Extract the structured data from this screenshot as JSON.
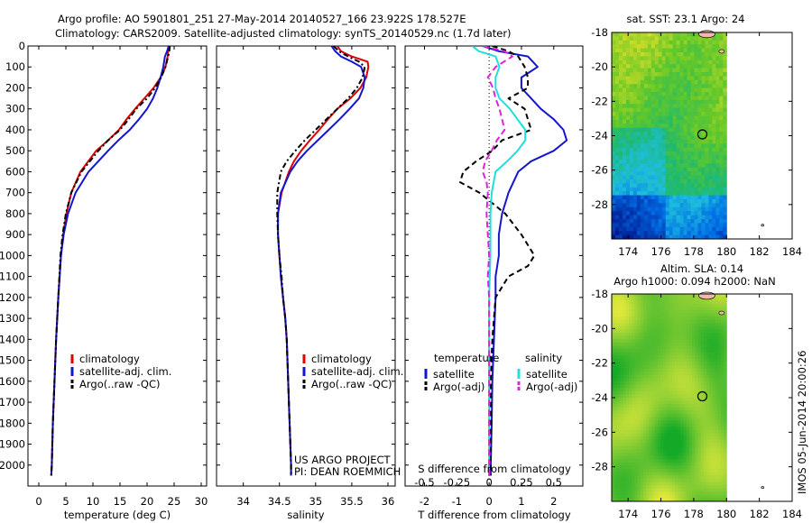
{
  "figure": {
    "title_line1": "Argo profile: AO 5901801_251 27-May-2014 20140527_166 23.922S 178.527E",
    "title_line2": "Climatology: CARS2009. Satellite-adjusted climatology: synTS_20140529.nc (1.7d later)",
    "credit_line1": "US ARGO PROJECT",
    "credit_line2": "PI: DEAN ROEMMICH",
    "watermark": "IMOS 05-Jun-2014 20:00:26"
  },
  "colors": {
    "climatology": "#e00000",
    "satellite": "#1515d0",
    "argo": "#000000",
    "sat_salinity": "#20dede",
    "argo_salinity": "#e020e0"
  },
  "chart_data": [
    {
      "type": "line",
      "xlabel": "temperature (deg C)",
      "xlim": [
        -2,
        31
      ],
      "ylim": [
        0,
        2100
      ],
      "xticks": [
        0,
        5,
        10,
        15,
        20,
        25,
        30
      ],
      "yticks": [
        0,
        100,
        200,
        300,
        400,
        500,
        600,
        700,
        800,
        900,
        1000,
        1100,
        1200,
        1300,
        1400,
        1500,
        1600,
        1700,
        1800,
        1900,
        2000
      ],
      "legend": [
        "climatology",
        "satellite-adj. clim.",
        "Argo(..raw -QC)"
      ],
      "series": [
        {
          "name": "climatology",
          "color": "#e00000",
          "dash": "",
          "depth": [
            0,
            25,
            50,
            100,
            150,
            200,
            250,
            300,
            350,
            400,
            450,
            500,
            600,
            700,
            800,
            900,
            1000,
            1200,
            1400,
            1600,
            1800,
            2000,
            2050
          ],
          "values": [
            24.0,
            23.9,
            23.8,
            23.4,
            22.5,
            21.2,
            19.5,
            17.8,
            16.2,
            14.8,
            12.8,
            10.6,
            7.7,
            6.0,
            5.1,
            4.5,
            4.1,
            3.6,
            3.2,
            2.9,
            2.6,
            2.4,
            2.3
          ]
        },
        {
          "name": "satellite-adj. clim.",
          "color": "#1515d0",
          "dash": "",
          "depth": [
            0,
            25,
            50,
            100,
            150,
            200,
            250,
            300,
            350,
            400,
            450,
            500,
            600,
            700,
            800,
            900,
            1000,
            1200,
            1400,
            1600,
            1800,
            2000,
            2050
          ],
          "values": [
            24.0,
            23.7,
            23.3,
            23.0,
            22.5,
            21.9,
            21.1,
            20.0,
            18.5,
            16.8,
            14.7,
            12.8,
            9.2,
            6.8,
            5.4,
            4.6,
            4.1,
            3.6,
            3.2,
            2.9,
            2.6,
            2.4,
            2.3
          ]
        },
        {
          "name": "Argo(..raw -QC)",
          "color": "#000000",
          "dash": "6,3,2,3",
          "depth": [
            0,
            25,
            50,
            100,
            150,
            200,
            250,
            300,
            350,
            400,
            450,
            500,
            600,
            700,
            800,
            900,
            1000,
            1200,
            1400,
            1600,
            1800,
            2000,
            2050
          ],
          "values": [
            24.2,
            24.1,
            23.9,
            23.4,
            22.6,
            21.5,
            20.0,
            18.0,
            16.6,
            15.0,
            12.8,
            11.0,
            7.9,
            6.0,
            5.0,
            4.4,
            4.0,
            3.6,
            3.2,
            2.9,
            2.6,
            2.4,
            2.3
          ]
        }
      ]
    },
    {
      "type": "line",
      "xlabel": "salinity",
      "xlim": [
        33.63,
        36.1
      ],
      "ylim": [
        0,
        2100
      ],
      "xticks": [
        34,
        34.5,
        35,
        35.5,
        36
      ],
      "legend": [
        "climatology",
        "satellite-adj. clim.",
        "Argo(..raw -QC)"
      ],
      "series": [
        {
          "name": "climatology",
          "color": "#e00000",
          "dash": "",
          "depth": [
            0,
            25,
            50,
            75,
            100,
            150,
            200,
            250,
            300,
            350,
            400,
            450,
            500,
            550,
            600,
            700,
            800,
            900,
            1000,
            1100,
            1200,
            1300,
            1400,
            1600,
            1800,
            2000,
            2050
          ],
          "values": [
            35.3,
            35.35,
            35.5,
            35.72,
            35.73,
            35.7,
            35.62,
            35.48,
            35.3,
            35.17,
            35.05,
            34.92,
            34.8,
            34.7,
            34.63,
            34.53,
            34.48,
            34.48,
            34.5,
            34.52,
            34.55,
            34.58,
            34.6,
            34.62,
            34.64,
            34.66,
            34.66
          ]
        },
        {
          "name": "satellite-adj. clim.",
          "color": "#1515d0",
          "dash": "",
          "depth": [
            0,
            25,
            50,
            75,
            100,
            150,
            200,
            250,
            300,
            350,
            400,
            450,
            500,
            550,
            600,
            700,
            800,
            900,
            1000,
            1100,
            1200,
            1300,
            1400,
            1600,
            1800,
            2000,
            2050
          ],
          "values": [
            35.22,
            35.27,
            35.35,
            35.5,
            35.63,
            35.68,
            35.66,
            35.6,
            35.47,
            35.33,
            35.18,
            35.03,
            34.88,
            34.75,
            34.65,
            34.52,
            34.48,
            34.48,
            34.5,
            34.52,
            34.55,
            34.58,
            34.6,
            34.62,
            34.64,
            34.66,
            34.66
          ]
        },
        {
          "name": "Argo(..raw -QC)",
          "color": "#000000",
          "dash": "6,3,2,3",
          "depth": [
            0,
            25,
            50,
            75,
            100,
            150,
            200,
            250,
            300,
            350,
            400,
            450,
            500,
            550,
            600,
            700,
            800,
            900,
            1000,
            1100,
            1200,
            1300,
            1400,
            1600,
            1800,
            2000,
            2050
          ],
          "values": [
            35.25,
            35.32,
            35.45,
            35.6,
            35.68,
            35.65,
            35.57,
            35.45,
            35.3,
            35.15,
            35.0,
            34.85,
            34.72,
            34.6,
            34.52,
            34.47,
            34.47,
            34.48,
            34.5,
            34.53,
            34.55,
            34.58,
            34.6,
            34.62,
            34.64,
            34.66,
            34.66
          ]
        }
      ]
    },
    {
      "type": "line",
      "xlabel": "T difference from climatology",
      "toplabel": "S difference from climatology",
      "xlim": [
        -2.6,
        2.9
      ],
      "ylim": [
        0,
        2100
      ],
      "xticks": [
        -2,
        -1,
        0,
        1,
        2
      ],
      "top_ticks": [
        -0.5,
        -0.25,
        0,
        0.25,
        0.5
      ],
      "legend_headers": [
        "temperature",
        "salinity"
      ],
      "legend": [
        "satellite",
        "Argo(-adj)",
        "satellite",
        "Argo(-adj)"
      ],
      "series": [
        {
          "name": "satellite",
          "color": "#1515d0",
          "dash": "",
          "depth": [
            0,
            25,
            50,
            100,
            150,
            200,
            250,
            300,
            350,
            400,
            450,
            500,
            550,
            600,
            700,
            800,
            900,
            1000,
            1100,
            1200,
            1400,
            1600,
            1800,
            2000,
            2050
          ],
          "values": [
            -0.2,
            0.3,
            1.2,
            1.5,
            1.0,
            1.0,
            1.3,
            1.6,
            2.0,
            2.3,
            2.4,
            2.0,
            1.3,
            0.9,
            0.6,
            0.4,
            0.3,
            0.3,
            0.2,
            0.2,
            0.15,
            0.1,
            0.08,
            0.05,
            0.05
          ]
        },
        {
          "name": "Argo(-adj)",
          "color": "#000000",
          "dash": "6,4",
          "depth": [
            0,
            25,
            50,
            100,
            150,
            200,
            250,
            300,
            350,
            400,
            450,
            500,
            550,
            600,
            650,
            700,
            800,
            900,
            1000,
            1050,
            1100,
            1200,
            1400,
            1600,
            1800,
            2000,
            2050
          ],
          "values": [
            0.1,
            0.6,
            0.9,
            1.1,
            1.2,
            1.2,
            0.6,
            1.1,
            1.2,
            1.3,
            0.4,
            0.1,
            -0.4,
            -0.8,
            -0.9,
            -0.3,
            0.5,
            1.0,
            1.4,
            1.2,
            0.6,
            0.2,
            0.1,
            0.05,
            0.05,
            0.05,
            0.05
          ]
        },
        {
          "name": "satellite",
          "color": "#20dede",
          "dash": "",
          "depth": [
            0,
            25,
            50,
            100,
            150,
            200,
            250,
            300,
            350,
            400,
            450,
            500,
            550,
            600,
            700,
            800,
            900,
            1000,
            1200,
            1400,
            1600,
            1800,
            2000,
            2050
          ],
          "values": [
            -0.13,
            -0.08,
            0.05,
            0.08,
            0.05,
            0.05,
            0.08,
            0.16,
            0.22,
            0.28,
            0.28,
            0.22,
            0.14,
            0.05,
            0.02,
            0.01,
            0.01,
            0.01,
            0.0,
            0.0,
            0.0,
            0.0,
            0.0,
            0.0
          ]
        },
        {
          "name": "Argo(-adj)",
          "color": "#e020e0",
          "dash": "7,4",
          "depth": [
            0,
            25,
            50,
            100,
            150,
            200,
            250,
            300,
            350,
            400,
            450,
            500,
            550,
            600,
            650,
            700,
            800,
            900,
            1000,
            1100,
            1200,
            1400,
            1600,
            1800,
            2000,
            2050
          ],
          "values": [
            -0.05,
            0.12,
            0.18,
            0.05,
            -0.01,
            0.03,
            0.05,
            0.08,
            0.1,
            0.12,
            0.06,
            0.02,
            -0.03,
            -0.05,
            -0.02,
            -0.01,
            -0.02,
            -0.01,
            0.0,
            -0.01,
            0.0,
            0.0,
            0.0,
            0.0,
            0.0,
            0.0
          ]
        }
      ]
    },
    {
      "type": "heatmap",
      "title": "sat. SST: 23.1  Argo: 24",
      "xlim": [
        173,
        184
      ],
      "ylim": [
        -30,
        -18
      ],
      "xticks": [
        174,
        176,
        178,
        180,
        182,
        184
      ],
      "yticks": [
        -18,
        -20,
        -22,
        -24,
        -26,
        -28
      ],
      "data_xrange": [
        173,
        180
      ],
      "marker": {
        "lon": 178.527,
        "lat": -23.922
      }
    },
    {
      "type": "heatmap",
      "title_line1": "Altim. SLA: 0.14",
      "title_line2": "Argo h1000: 0.094 h2000: NaN",
      "xlim": [
        173,
        184
      ],
      "ylim": [
        -30,
        -18
      ],
      "xticks": [
        174,
        176,
        178,
        180,
        182,
        184
      ],
      "yticks": [
        -18,
        -20,
        -22,
        -24,
        -26,
        -28
      ],
      "data_xrange": [
        173,
        180
      ],
      "marker": {
        "lon": 178.527,
        "lat": -23.922
      }
    }
  ]
}
